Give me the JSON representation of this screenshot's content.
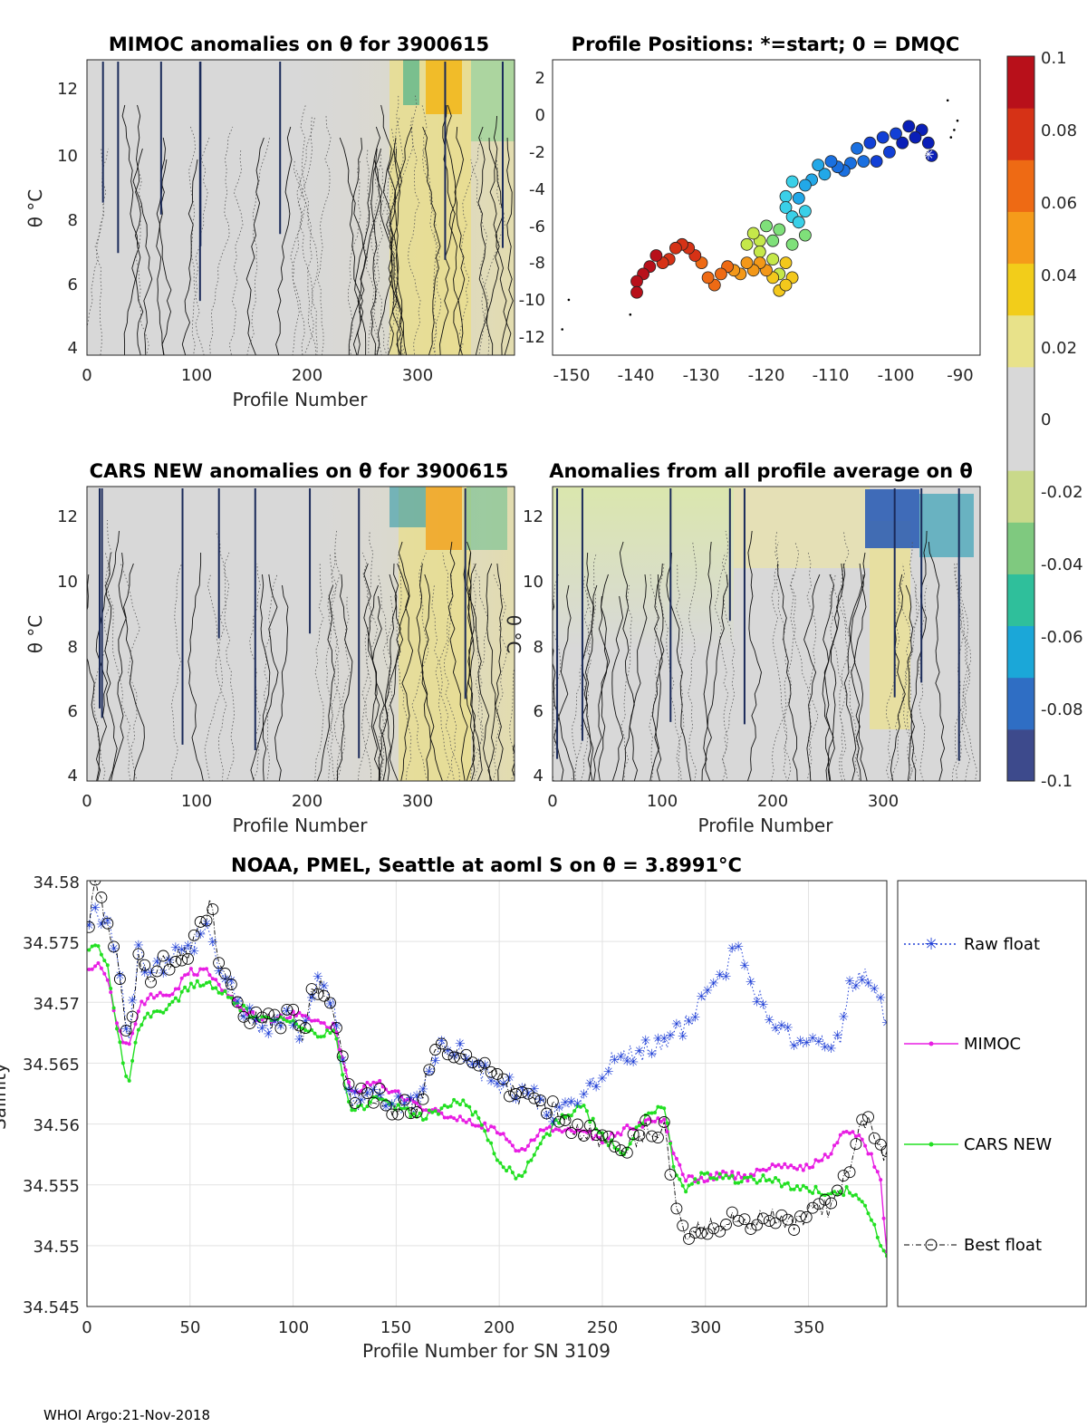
{
  "footer": "WHOI Argo:21-Nov-2018",
  "colorbar": {
    "ticks": [
      "0.1",
      "0.08",
      "0.06",
      "0.04",
      "0.02",
      "0",
      "-0.02",
      "-0.04",
      "-0.06",
      "-0.08",
      "-0.1"
    ],
    "colors": [
      "#3d4a8c",
      "#2f6ec4",
      "#1ba7d8",
      "#2fbf9b",
      "#7fc97f",
      "#c9d98a",
      "#d8d8d8",
      "#d8d8d8",
      "#e8e28a",
      "#f2cd1a",
      "#f59b1a",
      "#ee6a14",
      "#d63216",
      "#b8101a"
    ]
  },
  "chart_data": [
    {
      "id": "mimoc",
      "type": "heatmap",
      "title": "MIMOC anomalies on θ  for 3900615",
      "xlabel": "Profile Number",
      "ylabel": "θ °C",
      "xlim": [
        0,
        388
      ],
      "ylim": [
        3.9,
        12.8
      ],
      "xticks": [
        "0",
        "100",
        "200",
        "300"
      ],
      "yticks": [
        "4",
        "6",
        "8",
        "10",
        "12"
      ]
    },
    {
      "id": "positions",
      "type": "scatter",
      "title": "Profile Positions: *=start; 0 = DMQC",
      "xlim": [
        -153,
        -87
      ],
      "ylim": [
        -13,
        3
      ],
      "xticks": [
        "-150",
        "-140",
        "-130",
        "-120",
        "-110",
        "-100",
        "-90"
      ],
      "yticks": [
        "2",
        "0",
        "-2",
        "-4",
        "-6",
        "-8",
        "-10",
        "-12"
      ],
      "track": [
        [
          -94.5,
          -2.2
        ],
        [
          -95,
          -1.5
        ],
        [
          -96,
          -0.8
        ],
        [
          -97,
          -1.2
        ],
        [
          -98,
          -0.6
        ],
        [
          -99,
          -1.5
        ],
        [
          -100,
          -1.0
        ],
        [
          -101,
          -2.0
        ],
        [
          -102,
          -1.2
        ],
        [
          -103,
          -2.5
        ],
        [
          -104,
          -1.5
        ],
        [
          -105,
          -2.5
        ],
        [
          -106,
          -1.8
        ],
        [
          -107,
          -2.6
        ],
        [
          -108,
          -3.0
        ],
        [
          -109,
          -2.8
        ],
        [
          -110,
          -2.5
        ],
        [
          -111,
          -3.2
        ],
        [
          -112,
          -2.7
        ],
        [
          -113,
          -3.5
        ],
        [
          -114,
          -3.8
        ],
        [
          -115,
          -4.5
        ],
        [
          -116,
          -3.6
        ],
        [
          -117,
          -4.4
        ],
        [
          -117,
          -5.0
        ],
        [
          -116,
          -5.5
        ],
        [
          -115,
          -5.8
        ],
        [
          -114,
          -5.2
        ],
        [
          -114,
          -6.5
        ],
        [
          -116,
          -7.0
        ],
        [
          -118,
          -6.2
        ],
        [
          -119,
          -6.8
        ],
        [
          -120,
          -6.0
        ],
        [
          -121,
          -6.8
        ],
        [
          -122,
          -6.4
        ],
        [
          -123,
          -7.0
        ],
        [
          -121,
          -7.4
        ],
        [
          -119,
          -7.8
        ],
        [
          -118,
          -8.6
        ],
        [
          -117,
          -8.0
        ],
        [
          -116,
          -8.8
        ],
        [
          -118,
          -9.5
        ],
        [
          -117,
          -9.2
        ],
        [
          -119,
          -8.8
        ],
        [
          -120,
          -8.4
        ],
        [
          -121,
          -8.0
        ],
        [
          -122,
          -8.4
        ],
        [
          -123,
          -8.0
        ],
        [
          -124,
          -8.6
        ],
        [
          -125,
          -8.4
        ],
        [
          -126,
          -8.2
        ],
        [
          -127,
          -8.6
        ],
        [
          -128,
          -9.2
        ],
        [
          -129,
          -8.8
        ],
        [
          -130,
          -8.0
        ],
        [
          -131,
          -7.6
        ],
        [
          -132,
          -7.2
        ],
        [
          -133,
          -7.0
        ],
        [
          -134,
          -7.2
        ],
        [
          -135,
          -7.8
        ],
        [
          -136,
          -8.0
        ],
        [
          -137,
          -7.6
        ],
        [
          -138,
          -8.2
        ],
        [
          -139,
          -8.6
        ],
        [
          -140,
          -9.0
        ],
        [
          -140,
          -9.6
        ]
      ]
    },
    {
      "id": "cars",
      "type": "heatmap",
      "title": "CARS NEW anomalies on θ for 3900615",
      "xlabel": "Profile Number",
      "ylabel": "θ °C",
      "xlim": [
        0,
        388
      ],
      "ylim": [
        3.9,
        12.8
      ],
      "xticks": [
        "0",
        "100",
        "200",
        "300"
      ],
      "yticks": [
        "4",
        "6",
        "8",
        "10",
        "12"
      ]
    },
    {
      "id": "average",
      "type": "heatmap",
      "title": "Anomalies from all profile average on θ",
      "xlabel": "Profile Number",
      "ylabel": "θ °C",
      "xlim": [
        0,
        388
      ],
      "ylim": [
        3.9,
        12.8
      ],
      "xticks": [
        "0",
        "100",
        "200",
        "300"
      ],
      "yticks": [
        "4",
        "6",
        "8",
        "10",
        "12"
      ]
    },
    {
      "id": "salinity",
      "type": "line",
      "title": "NOAA, PMEL, Seattle at aoml S on θ = 3.8991°C",
      "xlabel": "Profile Number for SN 3109",
      "ylabel": "Salinity",
      "xlim": [
        0,
        388
      ],
      "ylim": [
        34.545,
        34.58
      ],
      "xticks": [
        "0",
        "50",
        "100",
        "150",
        "200",
        "250",
        "300",
        "350"
      ],
      "yticks": [
        "34.58",
        "34.575",
        "34.57",
        "34.565",
        "34.56",
        "34.555",
        "34.55",
        "34.545"
      ],
      "anchors": {
        "raw": [
          [
            1,
            34.577
          ],
          [
            5,
            34.5775
          ],
          [
            10,
            34.5765
          ],
          [
            15,
            34.5735
          ],
          [
            20,
            34.5665
          ],
          [
            25,
            34.574
          ],
          [
            30,
            34.572
          ],
          [
            40,
            34.5735
          ],
          [
            50,
            34.574
          ],
          [
            55,
            34.576
          ],
          [
            60,
            34.5765
          ],
          [
            65,
            34.5725
          ],
          [
            75,
            34.5695
          ],
          [
            85,
            34.568
          ],
          [
            100,
            34.569
          ],
          [
            105,
            34.567
          ],
          [
            110,
            34.5715
          ],
          [
            115,
            34.571
          ],
          [
            120,
            34.5695
          ],
          [
            128,
            34.5615
          ],
          [
            135,
            34.5625
          ],
          [
            150,
            34.5615
          ],
          [
            160,
            34.5615
          ],
          [
            170,
            34.566
          ],
          [
            180,
            34.566
          ],
          [
            190,
            34.5645
          ],
          [
            200,
            34.5635
          ],
          [
            210,
            34.5625
          ],
          [
            220,
            34.562
          ],
          [
            230,
            34.5605
          ],
          [
            240,
            34.5625
          ],
          [
            250,
            34.5645
          ],
          [
            260,
            34.5655
          ],
          [
            270,
            34.566
          ],
          [
            280,
            34.5665
          ],
          [
            290,
            34.568
          ],
          [
            300,
            34.5705
          ],
          [
            310,
            34.573
          ],
          [
            315,
            34.575
          ],
          [
            320,
            34.5735
          ],
          [
            325,
            34.5705
          ],
          [
            335,
            34.568
          ],
          [
            345,
            34.5665
          ],
          [
            355,
            34.5665
          ],
          [
            365,
            34.567
          ],
          [
            370,
            34.571
          ],
          [
            375,
            34.5725
          ],
          [
            380,
            34.5715
          ],
          [
            388,
            34.5685
          ]
        ],
        "mimoc": [
          [
            1,
            34.5725
          ],
          [
            5,
            34.5735
          ],
          [
            10,
            34.572
          ],
          [
            15,
            34.568
          ],
          [
            20,
            34.566
          ],
          [
            25,
            34.5695
          ],
          [
            30,
            34.5705
          ],
          [
            40,
            34.5705
          ],
          [
            50,
            34.5725
          ],
          [
            60,
            34.5725
          ],
          [
            65,
            34.571
          ],
          [
            75,
            34.5695
          ],
          [
            85,
            34.5685
          ],
          [
            100,
            34.569
          ],
          [
            110,
            34.5685
          ],
          [
            120,
            34.568
          ],
          [
            128,
            34.5625
          ],
          [
            140,
            34.5635
          ],
          [
            150,
            34.5625
          ],
          [
            160,
            34.5615
          ],
          [
            170,
            34.561
          ],
          [
            180,
            34.5605
          ],
          [
            190,
            34.56
          ],
          [
            200,
            34.5595
          ],
          [
            210,
            34.5575
          ],
          [
            220,
            34.5595
          ],
          [
            230,
            34.5595
          ],
          [
            240,
            34.5595
          ],
          [
            250,
            34.5585
          ],
          [
            260,
            34.5595
          ],
          [
            270,
            34.56
          ],
          [
            280,
            34.5605
          ],
          [
            285,
            34.5575
          ],
          [
            290,
            34.5555
          ],
          [
            300,
            34.5555
          ],
          [
            310,
            34.556
          ],
          [
            320,
            34.5555
          ],
          [
            330,
            34.5565
          ],
          [
            340,
            34.5565
          ],
          [
            350,
            34.5565
          ],
          [
            360,
            34.5575
          ],
          [
            365,
            34.559
          ],
          [
            370,
            34.5595
          ],
          [
            375,
            34.559
          ],
          [
            380,
            34.5575
          ],
          [
            385,
            34.5555
          ],
          [
            388,
            34.5495
          ]
        ],
        "cars": [
          [
            1,
            34.5745
          ],
          [
            5,
            34.575
          ],
          [
            10,
            34.573
          ],
          [
            15,
            34.5675
          ],
          [
            20,
            34.563
          ],
          [
            25,
            34.568
          ],
          [
            30,
            34.569
          ],
          [
            40,
            34.5695
          ],
          [
            50,
            34.5715
          ],
          [
            60,
            34.5715
          ],
          [
            65,
            34.571
          ],
          [
            75,
            34.5695
          ],
          [
            85,
            34.5685
          ],
          [
            100,
            34.5685
          ],
          [
            110,
            34.5675
          ],
          [
            120,
            34.5675
          ],
          [
            128,
            34.561
          ],
          [
            140,
            34.562
          ],
          [
            150,
            34.5615
          ],
          [
            160,
            34.5605
          ],
          [
            170,
            34.561
          ],
          [
            180,
            34.562
          ],
          [
            190,
            34.5605
          ],
          [
            200,
            34.557
          ],
          [
            210,
            34.5555
          ],
          [
            220,
            34.5585
          ],
          [
            230,
            34.5605
          ],
          [
            240,
            34.5615
          ],
          [
            250,
            34.559
          ],
          [
            260,
            34.5575
          ],
          [
            270,
            34.5605
          ],
          [
            280,
            34.5615
          ],
          [
            285,
            34.556
          ],
          [
            290,
            34.5545
          ],
          [
            300,
            34.556
          ],
          [
            310,
            34.5555
          ],
          [
            320,
            34.5555
          ],
          [
            330,
            34.5555
          ],
          [
            340,
            34.555
          ],
          [
            350,
            34.5545
          ],
          [
            360,
            34.5545
          ],
          [
            370,
            34.5545
          ],
          [
            380,
            34.5525
          ],
          [
            388,
            34.549
          ]
        ],
        "best": [
          [
            1,
            34.577
          ],
          [
            3,
            34.58
          ],
          [
            10,
            34.5765
          ],
          [
            15,
            34.5735
          ],
          [
            20,
            34.5665
          ],
          [
            25,
            34.574
          ],
          [
            30,
            34.572
          ],
          [
            40,
            34.5735
          ],
          [
            50,
            34.574
          ],
          [
            55,
            34.576
          ],
          [
            60,
            34.5785
          ],
          [
            65,
            34.5725
          ],
          [
            75,
            34.5695
          ],
          [
            85,
            34.568
          ],
          [
            100,
            34.569
          ],
          [
            105,
            34.567
          ],
          [
            110,
            34.5715
          ],
          [
            115,
            34.571
          ],
          [
            120,
            34.5695
          ],
          [
            128,
            34.5615
          ],
          [
            135,
            34.5625
          ],
          [
            150,
            34.5615
          ],
          [
            160,
            34.5615
          ],
          [
            170,
            34.566
          ],
          [
            180,
            34.566
          ],
          [
            190,
            34.5645
          ],
          [
            200,
            34.5635
          ],
          [
            210,
            34.5625
          ],
          [
            220,
            34.562
          ],
          [
            230,
            34.5605
          ],
          [
            240,
            34.5595
          ],
          [
            250,
            34.5585
          ],
          [
            260,
            34.5575
          ],
          [
            270,
            34.5595
          ],
          [
            280,
            34.5595
          ],
          [
            285,
            34.5545
          ],
          [
            290,
            34.551
          ],
          [
            300,
            34.5515
          ],
          [
            310,
            34.552
          ],
          [
            320,
            34.5515
          ],
          [
            330,
            34.5525
          ],
          [
            340,
            34.5515
          ],
          [
            350,
            34.5525
          ],
          [
            360,
            34.553
          ],
          [
            370,
            34.556
          ],
          [
            375,
            34.561
          ],
          [
            380,
            34.5595
          ],
          [
            388,
            34.557
          ]
        ]
      },
      "legend": [
        "Raw float",
        "MIMOC",
        "CARS NEW",
        "Best float"
      ],
      "series_colors": [
        "#1f3fd6",
        "#e81ee3",
        "#22e022",
        "#000000"
      ]
    }
  ]
}
